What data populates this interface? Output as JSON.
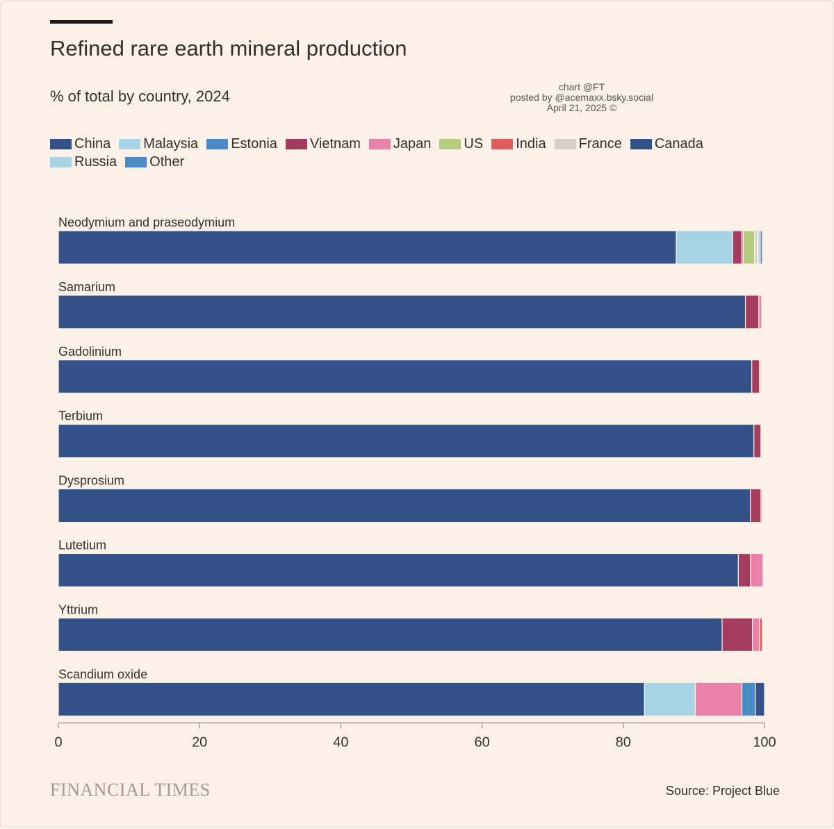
{
  "chart_data": {
    "type": "bar",
    "orientation": "horizontal",
    "stacked": true,
    "title": "Refined rare earth mineral production",
    "subtitle": "% of total by country, 2024",
    "categories": [
      "Neodymium and praseodymium",
      "Samarium",
      "Gadolinium",
      "Terbium",
      "Dysprosium",
      "Lutetium",
      "Yttrium",
      "Scandium oxide"
    ],
    "series": [
      {
        "name": "China",
        "color": "#325287",
        "values": [
          87.5,
          97.3,
          98.2,
          98.5,
          98.0,
          96.3,
          94.0,
          83.0
        ]
      },
      {
        "name": "Malaysia",
        "color": "#a7d3e7",
        "values": [
          8.0,
          0,
          0,
          0,
          0,
          0,
          0,
          7.2
        ]
      },
      {
        "name": "Estonia",
        "color": "#4a8ac9",
        "values": [
          0,
          0,
          0,
          0,
          0,
          0,
          0,
          0
        ]
      },
      {
        "name": "Vietnam",
        "color": "#a53b5e",
        "values": [
          1.3,
          1.9,
          1.1,
          1.0,
          1.5,
          1.7,
          4.3,
          0
        ]
      },
      {
        "name": "Japan",
        "color": "#e882a7",
        "values": [
          0.2,
          0.4,
          0.1,
          0,
          0.2,
          1.8,
          1.0,
          6.6
        ]
      },
      {
        "name": "US",
        "color": "#b4cc7d",
        "values": [
          1.6,
          0,
          0,
          0,
          0,
          0,
          0,
          0
        ]
      },
      {
        "name": "India",
        "color": "#e05c5c",
        "values": [
          0,
          0,
          0,
          0.1,
          0,
          0,
          0.4,
          0
        ]
      },
      {
        "name": "France",
        "color": "#d7cfca",
        "values": [
          0.4,
          0,
          0.2,
          0,
          0,
          0,
          0,
          0
        ]
      },
      {
        "name": "Canada",
        "color": "#325287",
        "values": [
          0.1,
          0,
          0,
          0,
          0,
          0,
          0,
          0
        ]
      },
      {
        "name": "Russia",
        "color": "#a7d3e7",
        "values": [
          0.3,
          0,
          0,
          0,
          0,
          0,
          0,
          0
        ]
      },
      {
        "name": "Other",
        "color": "#4a8ac9",
        "values": [
          0.3,
          0,
          0.1,
          0,
          0.1,
          0,
          0,
          1.9
        ]
      }
    ],
    "extra_segments_note": "",
    "xlim": [
      0,
      100
    ],
    "xticks": [
      0,
      20,
      40,
      60,
      80,
      100
    ],
    "grid": false,
    "legend_position": "top-left"
  },
  "trailing_segment": {
    "name": "",
    "color": "#325287",
    "values": [
      0,
      0,
      0,
      0,
      0,
      0,
      0,
      1.3
    ]
  },
  "legend": [
    {
      "label": "China",
      "color": "#325287"
    },
    {
      "label": "Malaysia",
      "color": "#a7d3e7"
    },
    {
      "label": "Estonia",
      "color": "#4a8ac9"
    },
    {
      "label": "Vietnam",
      "color": "#a53b5e"
    },
    {
      "label": "Japan",
      "color": "#e882a7"
    },
    {
      "label": "US",
      "color": "#b4cc7d"
    },
    {
      "label": "India",
      "color": "#e05c5c"
    },
    {
      "label": "France",
      "color": "#d7cfca"
    },
    {
      "label": "Canada",
      "color": "#325287"
    },
    {
      "label": "Russia",
      "color": "#a7d3e7"
    },
    {
      "label": "Other",
      "color": "#4a8ac9"
    }
  ],
  "credit": [
    "chart @FT",
    "posted by @acemaxx.bsky.social",
    "April 21, 2025 ©"
  ],
  "brand": "FINANCIAL TIMES",
  "source": "Source: Project Blue"
}
